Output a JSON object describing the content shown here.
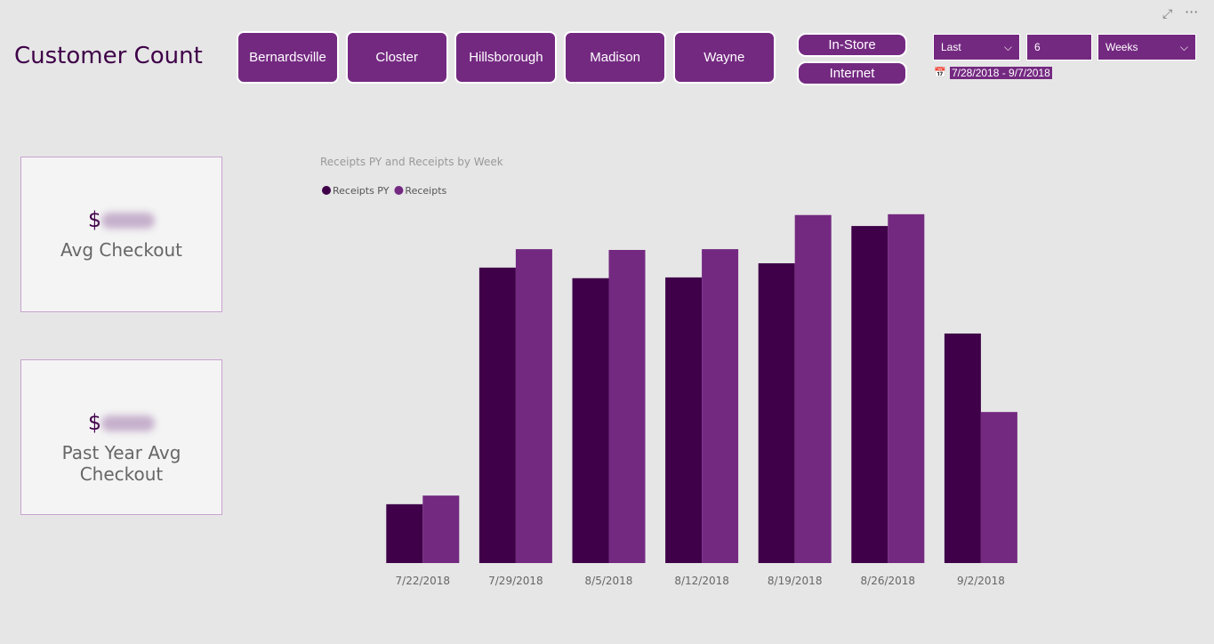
{
  "header": {
    "title": "Customer Count"
  },
  "slicers": {
    "stores": [
      "Bernardsville",
      "Closter",
      "Hillsborough",
      "Madison",
      "Wayne"
    ],
    "channels": [
      "In-Store",
      "Internet"
    ]
  },
  "date_filter": {
    "relative": "Last",
    "count": "6",
    "unit": "Weeks",
    "range": "7/28/2018 - 9/7/2018"
  },
  "cards": [
    {
      "prefix": "$",
      "label": "Avg Checkout"
    },
    {
      "prefix": "$",
      "label": "Past Year Avg Checkout"
    }
  ],
  "chart_data": {
    "type": "bar",
    "title": "Receipts PY and Receipts by Week",
    "categories": [
      "7/22/2018",
      "7/29/2018",
      "8/5/2018",
      "8/12/2018",
      "8/19/2018",
      "8/26/2018",
      "9/2/2018"
    ],
    "series": [
      {
        "name": "Receipts PY",
        "color": "#3f0049",
        "values": [
          1.5,
          7.53,
          7.26,
          7.28,
          7.64,
          8.59,
          5.85
        ]
      },
      {
        "name": "Receipts",
        "color": "#742981",
        "values": [
          1.72,
          8.0,
          7.98,
          8.0,
          8.87,
          8.89,
          3.85
        ]
      }
    ],
    "ylim": [
      0,
      9
    ]
  }
}
